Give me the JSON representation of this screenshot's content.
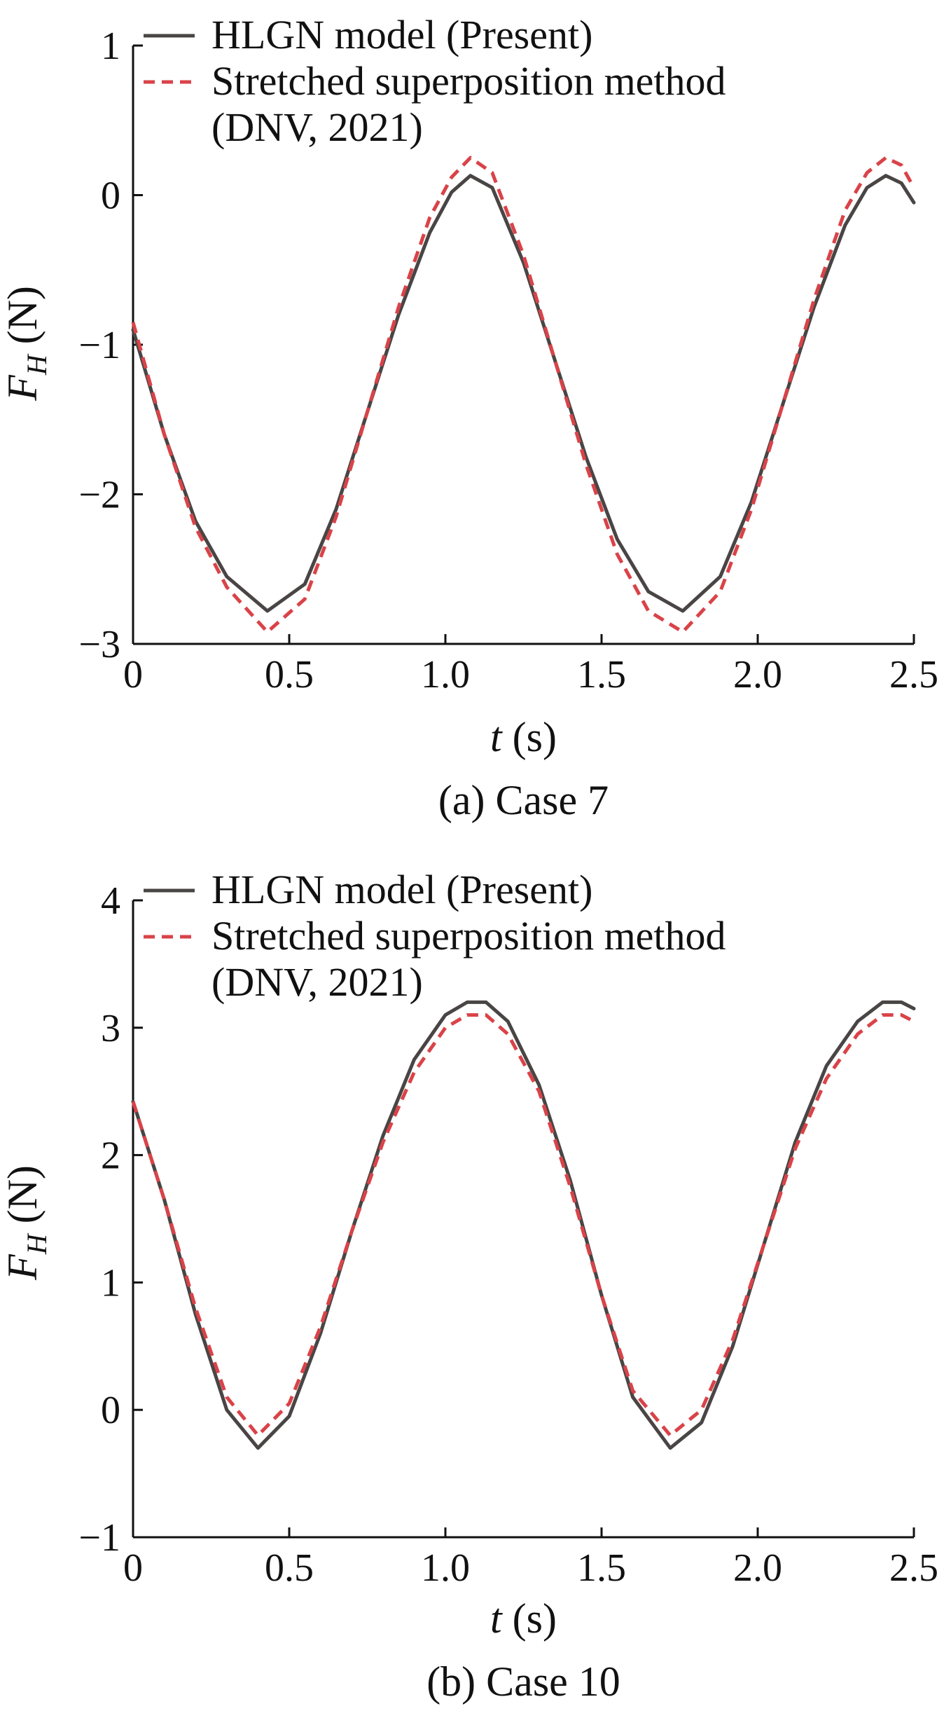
{
  "chart_data": [
    {
      "type": "line",
      "caption": "(a) Case 7",
      "xlabel_var": "t",
      "xlabel_unit": " (s)",
      "ylabel_var": "F",
      "ylabel_sub": "H",
      "ylabel_unit": " (N)",
      "xlim": [
        0,
        2.5
      ],
      "ylim": [
        -3,
        1
      ],
      "xticks": [
        0,
        0.5,
        1.0,
        1.5,
        2.0,
        2.5
      ],
      "xtick_labels": [
        "0",
        "0.5",
        "1.0",
        "1.5",
        "2.0",
        "2.5"
      ],
      "yticks": [
        -3,
        -2,
        -1,
        0,
        1
      ],
      "ytick_labels": [
        "−3",
        "−2",
        "−1",
        "0",
        "1"
      ],
      "legend_position": "top-left",
      "series": [
        {
          "name": "HLGN model (Present)",
          "style": "solid",
          "color": "#4a4545",
          "x": [
            0,
            0.1,
            0.2,
            0.3,
            0.43,
            0.55,
            0.65,
            0.75,
            0.85,
            0.95,
            1.02,
            1.08,
            1.15,
            1.25,
            1.35,
            1.45,
            1.55,
            1.65,
            1.76,
            1.88,
            1.98,
            2.08,
            2.18,
            2.28,
            2.35,
            2.41,
            2.46,
            2.5
          ],
          "values": [
            -0.9,
            -1.6,
            -2.18,
            -2.55,
            -2.78,
            -2.6,
            -2.1,
            -1.45,
            -0.8,
            -0.25,
            0.02,
            0.13,
            0.05,
            -0.45,
            -1.1,
            -1.75,
            -2.3,
            -2.65,
            -2.78,
            -2.55,
            -2.05,
            -1.4,
            -0.75,
            -0.2,
            0.05,
            0.13,
            0.08,
            -0.05
          ]
        },
        {
          "name": "Stretched superposition method (DNV, 2021)",
          "legend_lines": [
            "Stretched superposition method",
            "(DNV, 2021)"
          ],
          "style": "dashed",
          "color": "#d94348",
          "x": [
            0,
            0.1,
            0.2,
            0.3,
            0.43,
            0.55,
            0.65,
            0.75,
            0.85,
            0.95,
            1.02,
            1.08,
            1.15,
            1.25,
            1.35,
            1.45,
            1.55,
            1.65,
            1.76,
            1.88,
            1.98,
            2.08,
            2.18,
            2.28,
            2.35,
            2.41,
            2.46,
            2.5
          ],
          "values": [
            -0.85,
            -1.6,
            -2.22,
            -2.62,
            -2.92,
            -2.7,
            -2.15,
            -1.45,
            -0.75,
            -0.15,
            0.12,
            0.25,
            0.15,
            -0.4,
            -1.1,
            -1.8,
            -2.4,
            -2.78,
            -2.92,
            -2.65,
            -2.1,
            -1.4,
            -0.7,
            -0.1,
            0.15,
            0.25,
            0.2,
            0.05
          ]
        }
      ]
    },
    {
      "type": "line",
      "caption": "(b) Case 10",
      "xlabel_var": "t",
      "xlabel_unit": " (s)",
      "ylabel_var": "F",
      "ylabel_sub": "H",
      "ylabel_unit": " (N)",
      "xlim": [
        0,
        2.5
      ],
      "ylim": [
        -1,
        4
      ],
      "xticks": [
        0,
        0.5,
        1.0,
        1.5,
        2.0,
        2.5
      ],
      "xtick_labels": [
        "0",
        "0.5",
        "1.0",
        "1.5",
        "2.0",
        "2.5"
      ],
      "yticks": [
        -1,
        0,
        1,
        2,
        3,
        4
      ],
      "ytick_labels": [
        "−1",
        "0",
        "1",
        "2",
        "3",
        "4"
      ],
      "legend_position": "top-left",
      "series": [
        {
          "name": "HLGN model (Present)",
          "style": "solid",
          "color": "#4a4545",
          "x": [
            0,
            0.1,
            0.2,
            0.3,
            0.4,
            0.5,
            0.6,
            0.7,
            0.8,
            0.9,
            1.0,
            1.07,
            1.13,
            1.2,
            1.3,
            1.4,
            1.5,
            1.6,
            1.72,
            1.82,
            1.92,
            2.02,
            2.12,
            2.22,
            2.32,
            2.4,
            2.46,
            2.5
          ],
          "values": [
            2.42,
            1.65,
            0.75,
            0.0,
            -0.3,
            -0.05,
            0.6,
            1.4,
            2.15,
            2.75,
            3.1,
            3.2,
            3.2,
            3.05,
            2.55,
            1.8,
            0.9,
            0.1,
            -0.3,
            -0.1,
            0.5,
            1.3,
            2.1,
            2.7,
            3.05,
            3.2,
            3.2,
            3.15
          ]
        },
        {
          "name": "Stretched superposition method (DNV, 2021)",
          "legend_lines": [
            "Stretched superposition method",
            "(DNV, 2021)"
          ],
          "style": "dashed",
          "color": "#d94348",
          "x": [
            0,
            0.1,
            0.2,
            0.3,
            0.4,
            0.5,
            0.6,
            0.7,
            0.8,
            0.9,
            1.0,
            1.07,
            1.13,
            1.2,
            1.3,
            1.4,
            1.5,
            1.6,
            1.72,
            1.82,
            1.92,
            2.02,
            2.12,
            2.22,
            2.32,
            2.4,
            2.46,
            2.5
          ],
          "values": [
            2.42,
            1.65,
            0.8,
            0.1,
            -0.2,
            0.05,
            0.65,
            1.4,
            2.1,
            2.65,
            3.0,
            3.1,
            3.1,
            2.95,
            2.5,
            1.75,
            0.9,
            0.15,
            -0.2,
            0.0,
            0.55,
            1.3,
            2.05,
            2.6,
            2.95,
            3.1,
            3.1,
            3.05
          ]
        }
      ]
    }
  ]
}
